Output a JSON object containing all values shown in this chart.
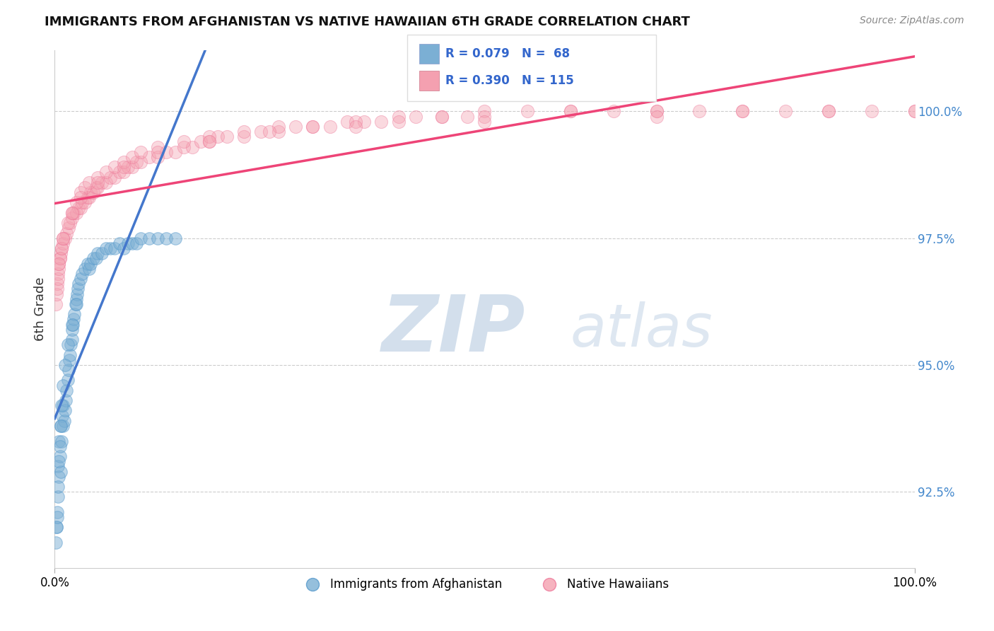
{
  "title": "IMMIGRANTS FROM AFGHANISTAN VS NATIVE HAWAIIAN 6TH GRADE CORRELATION CHART",
  "source": "Source: ZipAtlas.com",
  "ylabel": "6th Grade",
  "yticks": [
    92.5,
    95.0,
    97.5,
    100.0
  ],
  "ytick_labels": [
    "92.5%",
    "95.0%",
    "97.5%",
    "100.0%"
  ],
  "xlim": [
    0.0,
    1.0
  ],
  "ylim": [
    91.0,
    101.2
  ],
  "color_blue": "#7BAFD4",
  "color_pink": "#F4A0B0",
  "color_blue_line": "#4477CC",
  "color_pink_line": "#EE4477",
  "color_dashed": "#AACCEE",
  "blue_x": [
    0.001,
    0.002,
    0.003,
    0.004,
    0.004,
    0.005,
    0.005,
    0.006,
    0.007,
    0.007,
    0.008,
    0.009,
    0.01,
    0.01,
    0.011,
    0.012,
    0.013,
    0.014,
    0.015,
    0.016,
    0.017,
    0.018,
    0.019,
    0.02,
    0.02,
    0.021,
    0.022,
    0.023,
    0.024,
    0.025,
    0.026,
    0.027,
    0.028,
    0.03,
    0.032,
    0.035,
    0.038,
    0.04,
    0.042,
    0.045,
    0.048,
    0.05,
    0.055,
    0.06,
    0.065,
    0.07,
    0.075,
    0.08,
    0.085,
    0.09,
    0.095,
    0.1,
    0.11,
    0.12,
    0.13,
    0.14,
    0.002,
    0.003,
    0.004,
    0.005,
    0.006,
    0.007,
    0.008,
    0.01,
    0.012,
    0.015,
    0.02,
    0.025
  ],
  "blue_y": [
    91.5,
    91.8,
    92.1,
    92.4,
    93.0,
    92.8,
    93.5,
    93.2,
    92.9,
    93.8,
    93.5,
    94.0,
    93.8,
    94.2,
    93.9,
    94.1,
    94.3,
    94.5,
    94.7,
    94.9,
    95.1,
    95.2,
    95.4,
    95.5,
    95.7,
    95.8,
    95.9,
    96.0,
    96.2,
    96.3,
    96.4,
    96.5,
    96.6,
    96.7,
    96.8,
    96.9,
    97.0,
    96.9,
    97.0,
    97.1,
    97.1,
    97.2,
    97.2,
    97.3,
    97.3,
    97.3,
    97.4,
    97.3,
    97.4,
    97.4,
    97.4,
    97.5,
    97.5,
    97.5,
    97.5,
    97.5,
    91.8,
    92.0,
    92.6,
    93.1,
    93.4,
    93.8,
    94.2,
    94.6,
    95.0,
    95.4,
    95.8,
    96.2
  ],
  "pink_x": [
    0.001,
    0.002,
    0.003,
    0.004,
    0.005,
    0.006,
    0.007,
    0.008,
    0.01,
    0.012,
    0.014,
    0.016,
    0.018,
    0.02,
    0.022,
    0.025,
    0.028,
    0.03,
    0.032,
    0.035,
    0.038,
    0.04,
    0.042,
    0.045,
    0.048,
    0.05,
    0.055,
    0.06,
    0.065,
    0.07,
    0.075,
    0.08,
    0.085,
    0.09,
    0.095,
    0.1,
    0.11,
    0.12,
    0.13,
    0.14,
    0.15,
    0.16,
    0.17,
    0.18,
    0.19,
    0.2,
    0.22,
    0.24,
    0.26,
    0.28,
    0.3,
    0.32,
    0.34,
    0.36,
    0.38,
    0.4,
    0.42,
    0.45,
    0.48,
    0.5,
    0.55,
    0.6,
    0.65,
    0.7,
    0.75,
    0.8,
    0.85,
    0.9,
    0.95,
    1.0,
    0.003,
    0.004,
    0.005,
    0.006,
    0.008,
    0.01,
    0.015,
    0.02,
    0.025,
    0.03,
    0.035,
    0.04,
    0.05,
    0.06,
    0.07,
    0.08,
    0.09,
    0.1,
    0.12,
    0.15,
    0.18,
    0.22,
    0.26,
    0.3,
    0.35,
    0.4,
    0.45,
    0.5,
    0.6,
    0.7,
    0.8,
    0.9,
    1.0,
    0.005,
    0.01,
    0.02,
    0.03,
    0.05,
    0.08,
    0.12,
    0.18,
    0.25,
    0.35,
    0.5,
    0.7
  ],
  "pink_y": [
    96.2,
    96.4,
    96.6,
    96.8,
    97.0,
    97.1,
    97.2,
    97.3,
    97.4,
    97.5,
    97.6,
    97.7,
    97.8,
    97.9,
    98.0,
    98.0,
    98.1,
    98.1,
    98.2,
    98.2,
    98.3,
    98.3,
    98.4,
    98.4,
    98.5,
    98.5,
    98.6,
    98.6,
    98.7,
    98.7,
    98.8,
    98.8,
    98.9,
    98.9,
    99.0,
    99.0,
    99.1,
    99.1,
    99.2,
    99.2,
    99.3,
    99.3,
    99.4,
    99.4,
    99.5,
    99.5,
    99.5,
    99.6,
    99.6,
    99.7,
    99.7,
    99.7,
    99.8,
    99.8,
    99.8,
    99.9,
    99.9,
    99.9,
    99.9,
    100.0,
    100.0,
    100.0,
    100.0,
    100.0,
    100.0,
    100.0,
    100.0,
    100.0,
    100.0,
    100.0,
    96.5,
    96.7,
    96.9,
    97.1,
    97.3,
    97.5,
    97.8,
    98.0,
    98.2,
    98.4,
    98.5,
    98.6,
    98.7,
    98.8,
    98.9,
    99.0,
    99.1,
    99.2,
    99.3,
    99.4,
    99.5,
    99.6,
    99.7,
    99.7,
    99.8,
    99.8,
    99.9,
    99.9,
    100.0,
    100.0,
    100.0,
    100.0,
    100.0,
    97.0,
    97.5,
    98.0,
    98.3,
    98.6,
    98.9,
    99.2,
    99.4,
    99.6,
    99.7,
    99.8,
    99.9
  ]
}
